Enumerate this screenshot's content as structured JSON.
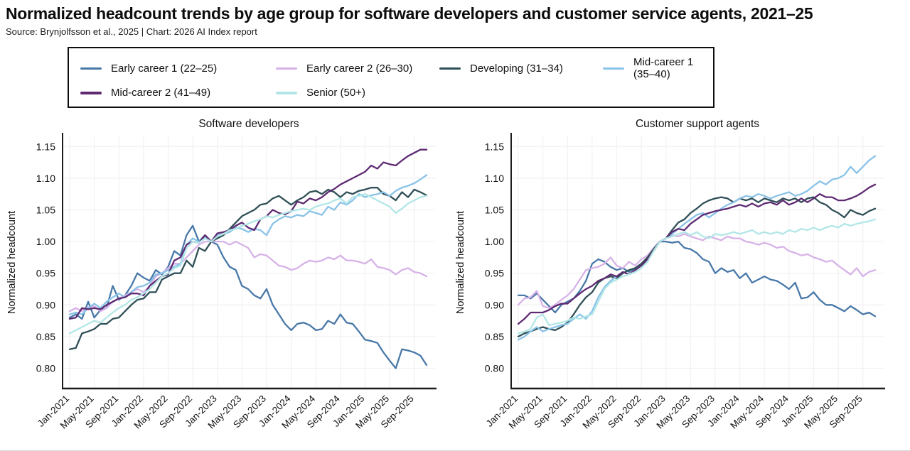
{
  "page": {
    "title": "Normalized headcount trends by age group for software developers and customer service agents, 2021–25",
    "source_line": "Source: Brynjolfsson et al., 2025 | Chart: 2026 AI Index report"
  },
  "legend": {
    "items": [
      {
        "id": "ec1",
        "label": "Early career 1 (22–25)",
        "color": "#4878a8"
      },
      {
        "id": "ec2",
        "label": "Early career 2 (26–30)",
        "color": "#d7b2e8"
      },
      {
        "id": "dev",
        "label": "Developing (31–34)",
        "color": "#2f4f56"
      },
      {
        "id": "mc1",
        "label": "Mid-career 1 (35–40)",
        "color": "#8ac3e8"
      },
      {
        "id": "mc2",
        "label": "Mid-career 2 (41–49)",
        "color": "#5e2a72"
      },
      {
        "id": "senior",
        "label": "Senior (50+)",
        "color": "#b2e6e6"
      }
    ]
  },
  "chart_data": {
    "type": "line",
    "frequency": "monthly",
    "categories": [
      "Jan-2021",
      "Feb-2021",
      "Mar-2021",
      "Apr-2021",
      "May-2021",
      "Jun-2021",
      "Jul-2021",
      "Aug-2021",
      "Sep-2021",
      "Oct-2021",
      "Nov-2021",
      "Dec-2021",
      "Jan-2022",
      "Feb-2022",
      "Mar-2022",
      "Apr-2022",
      "May-2022",
      "Jun-2022",
      "Jul-2022",
      "Aug-2022",
      "Sep-2022",
      "Oct-2022",
      "Nov-2022",
      "Dec-2022",
      "Jan-2023",
      "Feb-2023",
      "Mar-2023",
      "Apr-2023",
      "May-2023",
      "Jun-2023",
      "Jul-2023",
      "Aug-2023",
      "Sep-2023",
      "Oct-2023",
      "Nov-2023",
      "Dec-2023",
      "Jan-2024",
      "Feb-2024",
      "Mar-2024",
      "Apr-2024",
      "May-2024",
      "Jun-2024",
      "Jul-2024",
      "Aug-2024",
      "Sep-2024",
      "Oct-2024",
      "Nov-2024",
      "Dec-2024",
      "Jan-2025",
      "Feb-2025",
      "Mar-2025",
      "Apr-2025",
      "May-2025",
      "Jun-2025",
      "Jul-2025",
      "Aug-2025",
      "Sep-2025",
      "Oct-2025",
      "Nov-2025"
    ],
    "xtick_labels": [
      "Jan-2021",
      "May-2021",
      "Sep-2021",
      "Jan-2022",
      "May-2022",
      "Sep-2022",
      "Jan-2023",
      "May-2023",
      "Sep-2023",
      "Jan-2024",
      "May-2024",
      "Sep-2024",
      "Jan-2025",
      "May-2025",
      "Sep-2025"
    ],
    "xtick_every_n_months": 4,
    "ylabel": "Normalized headcount",
    "ylim": [
      0.768,
      1.166
    ],
    "yticks": [
      0.8,
      0.85,
      0.9,
      0.95,
      1.0,
      1.05,
      1.1,
      1.15
    ],
    "grid": true,
    "legend_position": "top",
    "charts": [
      {
        "title": "Software developers",
        "series": [
          {
            "id": "ec1",
            "name": "Early career 1 (22–25)",
            "color": "#4878a8",
            "values": [
              0.88,
              0.885,
              0.878,
              0.905,
              0.88,
              0.892,
              0.895,
              0.93,
              0.908,
              0.915,
              0.93,
              0.95,
              0.943,
              0.938,
              0.955,
              0.948,
              0.96,
              0.985,
              0.978,
              1.01,
              1.025,
              1.0,
              1.01,
              1.0,
              0.995,
              0.975,
              0.96,
              0.955,
              0.93,
              0.925,
              0.915,
              0.91,
              0.925,
              0.9,
              0.885,
              0.87,
              0.86,
              0.87,
              0.872,
              0.868,
              0.86,
              0.862,
              0.875,
              0.87,
              0.885,
              0.872,
              0.87,
              0.858,
              0.845,
              0.843,
              0.84,
              0.825,
              0.812,
              0.8,
              0.83,
              0.828,
              0.825,
              0.82,
              0.805
            ]
          },
          {
            "id": "ec2",
            "name": "Early career 2 (26–30)",
            "color": "#d7b2e8",
            "values": [
              0.89,
              0.895,
              0.89,
              0.896,
              0.898,
              0.89,
              0.895,
              0.905,
              0.91,
              0.915,
              0.92,
              0.925,
              0.92,
              0.93,
              0.945,
              0.95,
              0.958,
              0.965,
              0.965,
              0.975,
              0.985,
              0.995,
              1.0,
              1.0,
              1.0,
              1.0,
              0.995,
              1.0,
              0.995,
              0.99,
              0.975,
              0.98,
              0.978,
              0.97,
              0.962,
              0.96,
              0.955,
              0.958,
              0.965,
              0.97,
              0.968,
              0.97,
              0.975,
              0.972,
              0.978,
              0.97,
              0.97,
              0.968,
              0.965,
              0.972,
              0.96,
              0.958,
              0.955,
              0.948,
              0.955,
              0.958,
              0.952,
              0.95,
              0.945
            ]
          },
          {
            "id": "dev",
            "name": "Developing (31–34)",
            "color": "#2f4f56",
            "values": [
              0.83,
              0.832,
              0.855,
              0.858,
              0.862,
              0.87,
              0.87,
              0.878,
              0.88,
              0.89,
              0.9,
              0.908,
              0.91,
              0.92,
              0.92,
              0.94,
              0.945,
              0.95,
              0.95,
              0.97,
              0.96,
              0.99,
              0.985,
              1.0,
              1.005,
              1.01,
              1.02,
              1.03,
              1.04,
              1.045,
              1.05,
              1.058,
              1.06,
              1.068,
              1.072,
              1.065,
              1.058,
              1.065,
              1.07,
              1.078,
              1.08,
              1.075,
              1.082,
              1.078,
              1.07,
              1.078,
              1.075,
              1.08,
              1.082,
              1.085,
              1.085,
              1.075,
              1.072,
              1.065,
              1.078,
              1.07,
              1.082,
              1.078,
              1.073
            ]
          },
          {
            "id": "mc1",
            "name": "Mid-career 1 (35–40)",
            "color": "#8ac3e8",
            "values": [
              0.885,
              0.888,
              0.885,
              0.895,
              0.902,
              0.895,
              0.905,
              0.912,
              0.918,
              0.912,
              0.92,
              0.928,
              0.93,
              0.935,
              0.948,
              0.95,
              0.955,
              0.96,
              0.965,
              0.995,
              1.005,
              1.0,
              1.008,
              1.0,
              1.01,
              1.012,
              1.015,
              1.022,
              1.02,
              1.015,
              1.02,
              1.018,
              1.01,
              1.028,
              1.035,
              1.04,
              1.038,
              1.042,
              1.04,
              1.048,
              1.045,
              1.042,
              1.055,
              1.05,
              1.062,
              1.058,
              1.065,
              1.075,
              1.07,
              1.073,
              1.075,
              1.078,
              1.072,
              1.08,
              1.085,
              1.088,
              1.092,
              1.098,
              1.105
            ]
          },
          {
            "id": "mc2",
            "name": "Mid-career 2 (41–49)",
            "color": "#5e2a72",
            "values": [
              0.878,
              0.88,
              0.895,
              0.893,
              0.895,
              0.893,
              0.9,
              0.905,
              0.91,
              0.912,
              0.918,
              0.918,
              0.915,
              0.93,
              0.938,
              0.945,
              0.948,
              0.97,
              0.975,
              0.995,
              1.0,
              0.998,
              1.01,
              1.0,
              1.013,
              1.015,
              1.018,
              1.025,
              1.03,
              1.022,
              1.018,
              1.035,
              1.04,
              1.05,
              1.045,
              1.043,
              1.048,
              1.063,
              1.06,
              1.068,
              1.065,
              1.07,
              1.078,
              1.083,
              1.09,
              1.095,
              1.1,
              1.105,
              1.11,
              1.12,
              1.115,
              1.125,
              1.122,
              1.12,
              1.128,
              1.135,
              1.14,
              1.145,
              1.145
            ]
          },
          {
            "id": "senior",
            "name": "Senior (50+)",
            "color": "#b2e6e6",
            "values": [
              0.855,
              0.86,
              0.865,
              0.87,
              0.875,
              0.872,
              0.88,
              0.888,
              0.895,
              0.9,
              0.908,
              0.912,
              0.918,
              0.925,
              0.935,
              0.945,
              0.95,
              0.958,
              0.962,
              0.99,
              1.0,
              0.998,
              1.005,
              1.0,
              1.008,
              1.012,
              1.018,
              1.02,
              1.025,
              1.028,
              1.032,
              1.035,
              1.04,
              1.038,
              1.042,
              1.045,
              1.048,
              1.05,
              1.052,
              1.05,
              1.055,
              1.058,
              1.06,
              1.065,
              1.068,
              1.06,
              1.07,
              1.072,
              1.075,
              1.07,
              1.065,
              1.06,
              1.055,
              1.045,
              1.052,
              1.06,
              1.065,
              1.07,
              1.072
            ]
          }
        ]
      },
      {
        "title": "Customer support agents",
        "series": [
          {
            "id": "ec1",
            "name": "Early career 1 (22–25)",
            "color": "#4878a8",
            "values": [
              0.915,
              0.915,
              0.91,
              0.918,
              0.908,
              0.898,
              0.888,
              0.9,
              0.905,
              0.91,
              0.922,
              0.938,
              0.965,
              0.972,
              0.968,
              0.96,
              0.955,
              0.958,
              0.952,
              0.958,
              0.965,
              0.975,
              0.988,
              1.0,
              1.0,
              0.998,
              1.0,
              0.99,
              0.988,
              0.982,
              0.972,
              0.968,
              0.95,
              0.958,
              0.952,
              0.955,
              0.942,
              0.95,
              0.935,
              0.94,
              0.945,
              0.94,
              0.938,
              0.932,
              0.925,
              0.935,
              0.91,
              0.912,
              0.92,
              0.908,
              0.9,
              0.9,
              0.895,
              0.89,
              0.898,
              0.892,
              0.885,
              0.888,
              0.882
            ]
          },
          {
            "id": "ec2",
            "name": "Early career 2 (26–30)",
            "color": "#d7b2e8",
            "values": [
              0.9,
              0.91,
              0.912,
              0.922,
              0.898,
              0.895,
              0.9,
              0.908,
              0.915,
              0.925,
              0.94,
              0.955,
              0.958,
              0.96,
              0.965,
              0.975,
              0.962,
              0.958,
              0.968,
              0.962,
              0.972,
              0.978,
              0.99,
              1.0,
              1.005,
              1.01,
              1.008,
              1.012,
              1.008,
              1.005,
              1.002,
              1.008,
              1.005,
              1.002,
              1.008,
              1.005,
              1.005,
              1.0,
              0.998,
              0.995,
              0.998,
              0.995,
              0.99,
              0.992,
              0.985,
              0.982,
              0.978,
              0.98,
              0.975,
              0.972,
              0.968,
              0.97,
              0.962,
              0.955,
              0.948,
              0.958,
              0.945,
              0.952,
              0.955
            ]
          },
          {
            "id": "dev",
            "name": "Developing (31–34)",
            "color": "#2f4f56",
            "values": [
              0.85,
              0.855,
              0.858,
              0.862,
              0.865,
              0.862,
              0.86,
              0.865,
              0.872,
              0.885,
              0.9,
              0.912,
              0.92,
              0.935,
              0.942,
              0.945,
              0.942,
              0.95,
              0.955,
              0.958,
              0.965,
              0.975,
              0.988,
              1.0,
              1.005,
              1.018,
              1.03,
              1.035,
              1.045,
              1.052,
              1.06,
              1.065,
              1.068,
              1.07,
              1.068,
              1.062,
              1.068,
              1.065,
              1.068,
              1.062,
              1.068,
              1.065,
              1.062,
              1.068,
              1.065,
              1.068,
              1.062,
              1.068,
              1.07,
              1.062,
              1.058,
              1.05,
              1.045,
              1.038,
              1.05,
              1.045,
              1.042,
              1.048,
              1.052
            ]
          },
          {
            "id": "mc1",
            "name": "Mid-career 1 (35–40)",
            "color": "#8ac3e8",
            "values": [
              0.845,
              0.85,
              0.858,
              0.865,
              0.858,
              0.862,
              0.865,
              0.868,
              0.87,
              0.878,
              0.885,
              0.878,
              0.89,
              0.912,
              0.928,
              0.938,
              0.945,
              0.952,
              0.948,
              0.955,
              0.962,
              0.97,
              0.985,
              1.0,
              1.005,
              1.012,
              1.02,
              1.028,
              1.035,
              1.042,
              1.045,
              1.038,
              1.045,
              1.052,
              1.058,
              1.062,
              1.068,
              1.072,
              1.07,
              1.075,
              1.072,
              1.068,
              1.072,
              1.075,
              1.078,
              1.072,
              1.075,
              1.08,
              1.088,
              1.095,
              1.09,
              1.098,
              1.1,
              1.105,
              1.118,
              1.108,
              1.118,
              1.128,
              1.135
            ]
          },
          {
            "id": "mc2",
            "name": "Mid-career 2 (41–49)",
            "color": "#5e2a72",
            "values": [
              0.87,
              0.878,
              0.888,
              0.888,
              0.888,
              0.892,
              0.898,
              0.902,
              0.902,
              0.91,
              0.918,
              0.925,
              0.93,
              0.938,
              0.942,
              0.948,
              0.945,
              0.952,
              0.948,
              0.955,
              0.962,
              0.972,
              0.985,
              1.0,
              1.005,
              1.015,
              1.02,
              1.018,
              1.028,
              1.035,
              1.042,
              1.045,
              1.048,
              1.05,
              1.052,
              1.055,
              1.058,
              1.055,
              1.06,
              1.055,
              1.06,
              1.062,
              1.058,
              1.065,
              1.058,
              1.062,
              1.068,
              1.062,
              1.068,
              1.075,
              1.07,
              1.07,
              1.065,
              1.065,
              1.068,
              1.072,
              1.078,
              1.085,
              1.09
            ]
          },
          {
            "id": "senior",
            "name": "Senior (50+)",
            "color": "#b2e6e6",
            "values": [
              0.855,
              0.858,
              0.862,
              0.88,
              0.885,
              0.868,
              0.87,
              0.872,
              0.875,
              0.88,
              0.878,
              0.882,
              0.885,
              0.905,
              0.925,
              0.935,
              0.94,
              0.945,
              0.948,
              0.952,
              0.958,
              0.968,
              0.985,
              1.0,
              1.005,
              1.008,
              1.012,
              1.015,
              1.01,
              1.015,
              1.008,
              1.005,
              1.012,
              1.01,
              1.012,
              1.015,
              1.012,
              1.015,
              1.018,
              1.012,
              1.015,
              1.012,
              1.015,
              1.012,
              1.018,
              1.015,
              1.02,
              1.018,
              1.022,
              1.018,
              1.022,
              1.025,
              1.022,
              1.028,
              1.025,
              1.028,
              1.03,
              1.032,
              1.035
            ]
          }
        ]
      }
    ]
  },
  "style": {
    "axis_color": "#1c1c1c",
    "grid_color": "#f3f1f3",
    "background": "#ffffff"
  }
}
